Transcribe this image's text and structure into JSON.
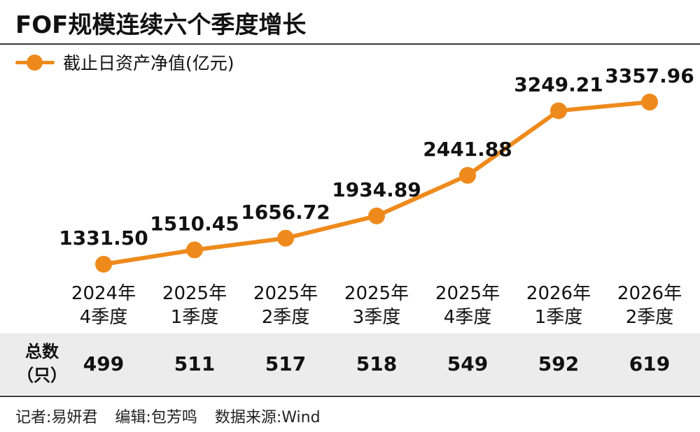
{
  "title": "FOF规模连续六个季度增长",
  "legend": {
    "label": "截止日资产净值(亿元)"
  },
  "colors": {
    "series": "#ee8a1c",
    "band": "#ececec"
  },
  "chart_data": {
    "type": "line",
    "title": "FOF规模连续六个季度增长",
    "categories": [
      [
        "2024年",
        "4季度"
      ],
      [
        "2025年",
        "1季度"
      ],
      [
        "2025年",
        "2季度"
      ],
      [
        "2025年",
        "3季度"
      ],
      [
        "2025年",
        "4季度"
      ],
      [
        "2026年",
        "1季度"
      ],
      [
        "2026年",
        "2季度"
      ]
    ],
    "series": [
      {
        "name": "截止日资产净值(亿元)",
        "values": [
          1331.5,
          1510.45,
          1656.72,
          1934.89,
          2441.88,
          3249.21,
          3357.96
        ],
        "labels": [
          "1331.50",
          "1510.45",
          "1656.72",
          "1934.89",
          "2441.88",
          "3249.21",
          "3357.96"
        ]
      }
    ],
    "grid": false,
    "legend_position": "top-left"
  },
  "table": {
    "row_header": [
      "总数",
      "（只）"
    ],
    "values": [
      "499",
      "511",
      "517",
      "518",
      "549",
      "592",
      "619"
    ]
  },
  "footer": {
    "reporter": "记者:易妍君",
    "editor": "编辑:包芳鸣",
    "source": "数据来源:Wind"
  }
}
